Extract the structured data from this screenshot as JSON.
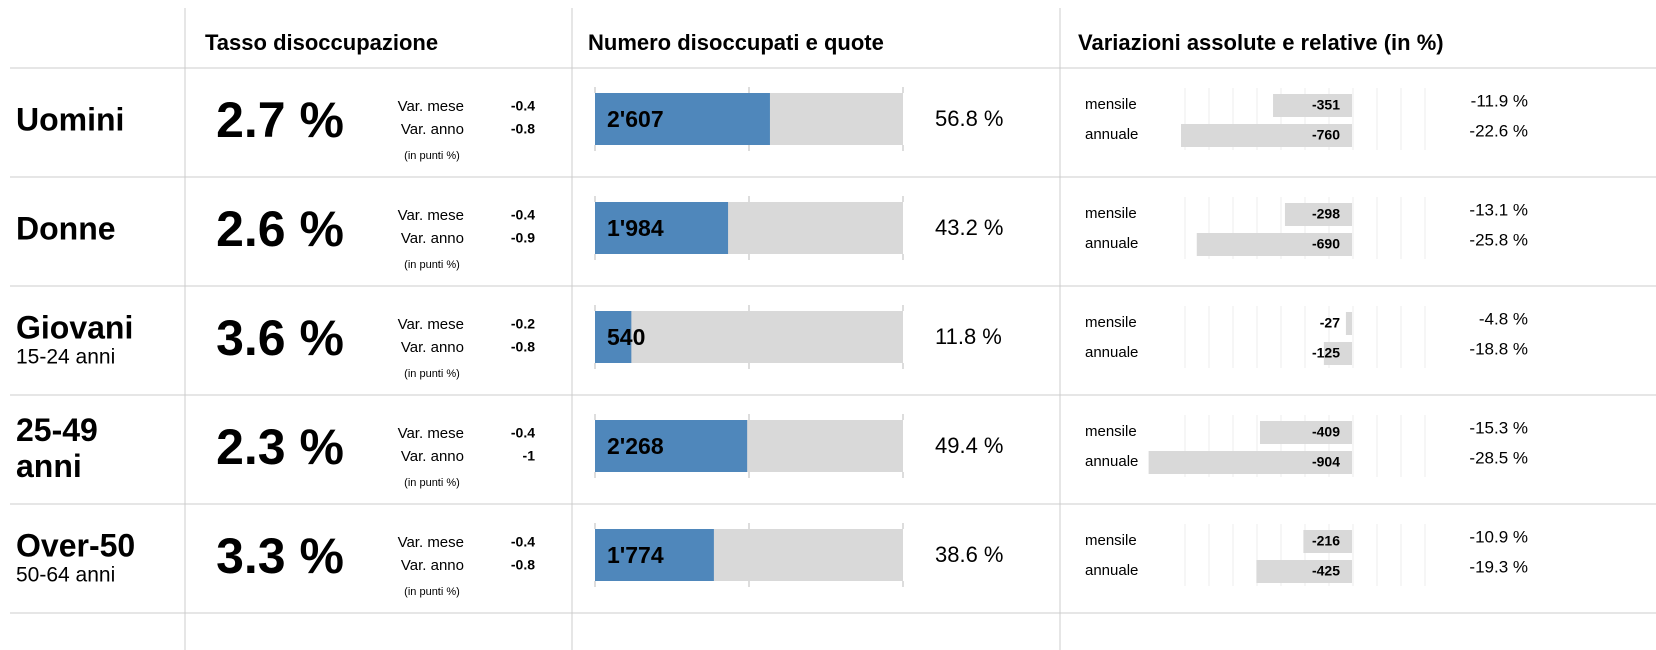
{
  "headers": [
    "Tasso disoccupazione",
    "Numero disoccupati e quote",
    "Variazioni assolute e relative (in %)"
  ],
  "rate_labels": [
    "Var. mese",
    "Var. anno",
    "(in punti %)"
  ],
  "var_labels": [
    "mensile",
    "annuale"
  ],
  "rows": [
    {
      "label": "Uomini",
      "rate": "2.7 %",
      "rate_var": [
        -0.4,
        -0.8
      ],
      "count": 2607,
      "count_label": "2'607",
      "share": 56.8,
      "share_label": "56.8 %",
      "abs": [
        -351,
        -760
      ],
      "rel": [
        "-11.9 %",
        "-22.6 %"
      ]
    },
    {
      "label": "Donne",
      "rate": "2.6 %",
      "rate_var": [
        -0.4,
        -0.9
      ],
      "count": 1984,
      "count_label": "1'984",
      "share": 43.2,
      "share_label": "43.2 %",
      "abs": [
        -298,
        -690
      ],
      "rel": [
        "-13.1 %",
        "-25.8 %"
      ]
    },
    {
      "label": "Giovani",
      "sublabel": "15-24 anni",
      "rate": "3.6 %",
      "rate_var": [
        -0.2,
        -0.8
      ],
      "count": 540,
      "count_label": "540",
      "share": 11.8,
      "share_label": "11.8 %",
      "abs": [
        -27,
        -125
      ],
      "rel": [
        "-4.8 %",
        "-18.8 %"
      ]
    },
    {
      "label": "25-49 anni",
      "rate": "2.3 %",
      "rate_var": [
        -0.4,
        -1
      ],
      "count": 2268,
      "count_label": "2'268",
      "share": 49.4,
      "share_label": "49.4 %",
      "abs": [
        -409,
        -904
      ],
      "rel": [
        "-15.3 %",
        "-28.5 %"
      ]
    },
    {
      "label": "Over-50",
      "sublabel": "50-64 anni",
      "rate": "3.3 %",
      "rate_var": [
        -0.4,
        -0.8
      ],
      "count": 1774,
      "count_label": "1'774",
      "share": 38.6,
      "share_label": "38.6 %",
      "abs": [
        -216,
        -425
      ],
      "rel": [
        "-10.9 %",
        "-19.3 %"
      ]
    }
  ]
}
